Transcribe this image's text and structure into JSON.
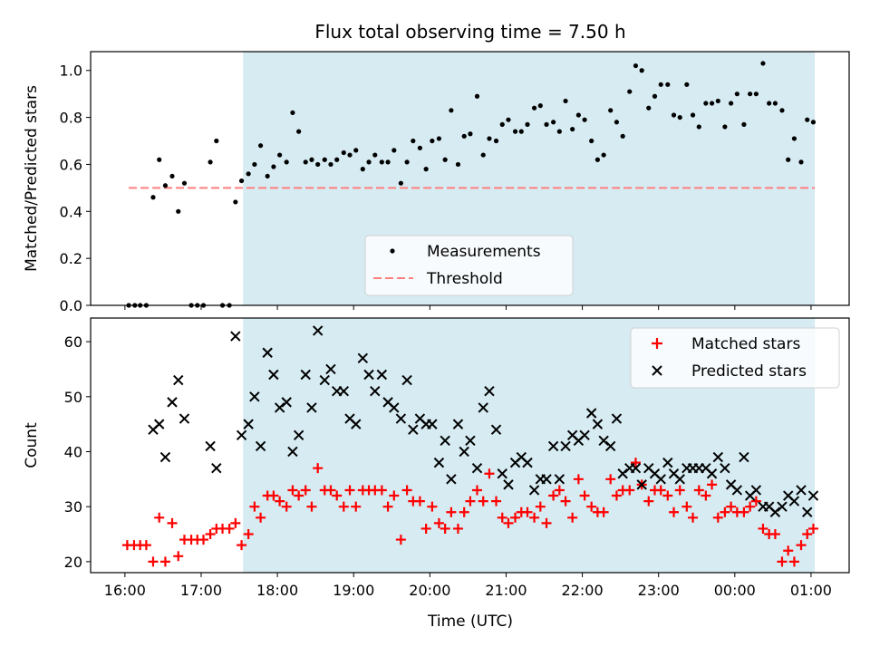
{
  "title": "Flux total observing time = 7.50 h",
  "colors": {
    "shade": "#add8e6",
    "measurement": "#000000",
    "threshold": "#ff7f7f",
    "matched": "#ff0000",
    "predicted": "#000000"
  },
  "chart_data": [
    {
      "type": "scatter",
      "ylabel": "Matched/Predicted stars",
      "xlim": [
        15.55,
        25.5
      ],
      "ylim": [
        0,
        1.08
      ],
      "yticks": [
        "0.0",
        "0.2",
        "0.4",
        "0.6",
        "0.8",
        "1.0"
      ],
      "shaded_span": [
        17.55,
        25.05
      ],
      "legend": [
        "Measurements",
        "Threshold"
      ],
      "threshold": {
        "x": [
          16.05,
          25.05
        ],
        "y": 0.5
      },
      "measurements": {
        "x": [
          16.05,
          16.13,
          16.2,
          16.28,
          16.37,
          16.45,
          16.53,
          16.62,
          16.7,
          16.78,
          16.87,
          16.95,
          17.03,
          17.12,
          17.2,
          17.28,
          17.37,
          17.45,
          17.53,
          17.62,
          17.7,
          17.78,
          17.87,
          17.95,
          18.03,
          18.12,
          18.2,
          18.28,
          18.37,
          18.45,
          18.53,
          18.62,
          18.7,
          18.78,
          18.87,
          18.95,
          19.03,
          19.12,
          19.2,
          19.28,
          19.37,
          19.45,
          19.53,
          19.62,
          19.7,
          19.78,
          19.87,
          19.95,
          20.03,
          20.12,
          20.2,
          20.28,
          20.37,
          20.45,
          20.53,
          20.62,
          20.7,
          20.78,
          20.87,
          20.95,
          21.03,
          21.12,
          21.2,
          21.28,
          21.37,
          21.45,
          21.53,
          21.62,
          21.7,
          21.78,
          21.87,
          21.95,
          22.03,
          22.12,
          22.2,
          22.28,
          22.37,
          22.45,
          22.53,
          22.62,
          22.7,
          22.78,
          22.87,
          22.95,
          23.03,
          23.12,
          23.2,
          23.28,
          23.37,
          23.45,
          23.53,
          23.62,
          23.7,
          23.78,
          23.87,
          23.95,
          24.03,
          24.12,
          24.2,
          24.28,
          24.37,
          24.45,
          24.53,
          24.62,
          24.7,
          24.78,
          24.87,
          24.95,
          25.03
        ],
        "y": [
          0.0,
          0.0,
          0.0,
          0.0,
          0.46,
          0.62,
          0.51,
          0.55,
          0.4,
          0.52,
          0.0,
          0.0,
          0.0,
          0.61,
          0.7,
          0.0,
          0.0,
          0.44,
          0.53,
          0.56,
          0.6,
          0.68,
          0.55,
          0.59,
          0.64,
          0.61,
          0.82,
          0.74,
          0.61,
          0.62,
          0.6,
          0.62,
          0.6,
          0.62,
          0.65,
          0.64,
          0.66,
          0.58,
          0.61,
          0.64,
          0.61,
          0.61,
          0.66,
          0.52,
          0.61,
          0.7,
          0.67,
          0.58,
          0.7,
          0.71,
          0.62,
          0.83,
          0.6,
          0.72,
          0.73,
          0.89,
          0.64,
          0.71,
          0.7,
          0.77,
          0.79,
          0.74,
          0.74,
          0.77,
          0.84,
          0.85,
          0.77,
          0.78,
          0.74,
          0.87,
          0.75,
          0.81,
          0.79,
          0.7,
          0.62,
          0.64,
          0.83,
          0.78,
          0.72,
          0.91,
          1.02,
          1.0,
          0.84,
          0.89,
          0.94,
          0.94,
          0.81,
          0.8,
          0.94,
          0.81,
          0.76,
          0.86,
          0.86,
          0.87,
          0.76,
          0.86,
          0.9,
          0.77,
          0.9,
          0.9,
          1.03,
          0.86,
          0.86,
          0.83,
          0.62,
          0.71,
          0.61,
          0.79,
          0.78
        ]
      }
    },
    {
      "type": "scatter",
      "xlabel": "Time (UTC)",
      "ylabel": "Count",
      "xlim": [
        15.55,
        25.5
      ],
      "ylim": [
        18,
        64.3
      ],
      "yticks": [
        "20",
        "30",
        "40",
        "50",
        "60"
      ],
      "xticks": [
        "16:00",
        "17:00",
        "18:00",
        "19:00",
        "20:00",
        "21:00",
        "22:00",
        "23:00",
        "00:00",
        "01:00"
      ],
      "shaded_span": [
        17.55,
        25.05
      ],
      "legend": [
        "Matched stars",
        "Predicted stars"
      ],
      "matched": {
        "x": [
          16.03,
          16.12,
          16.2,
          16.28,
          16.37,
          16.45,
          16.53,
          16.62,
          16.7,
          16.78,
          16.87,
          16.95,
          17.03,
          17.12,
          17.2,
          17.28,
          17.37,
          17.45,
          17.53,
          17.62,
          17.7,
          17.78,
          17.87,
          17.95,
          18.03,
          18.12,
          18.2,
          18.28,
          18.37,
          18.45,
          18.53,
          18.62,
          18.7,
          18.78,
          18.87,
          18.95,
          19.03,
          19.12,
          19.2,
          19.28,
          19.37,
          19.45,
          19.53,
          19.62,
          19.7,
          19.78,
          19.87,
          19.95,
          20.03,
          20.12,
          20.2,
          20.28,
          20.37,
          20.45,
          20.53,
          20.62,
          20.7,
          20.78,
          20.87,
          20.95,
          21.03,
          21.12,
          21.2,
          21.28,
          21.37,
          21.45,
          21.53,
          21.62,
          21.7,
          21.78,
          21.87,
          21.95,
          22.03,
          22.12,
          22.2,
          22.28,
          22.37,
          22.45,
          22.53,
          22.62,
          22.7,
          22.78,
          22.87,
          22.95,
          23.03,
          23.12,
          23.2,
          23.28,
          23.37,
          23.45,
          23.53,
          23.62,
          23.7,
          23.78,
          23.87,
          23.95,
          24.03,
          24.12,
          24.2,
          24.28,
          24.37,
          24.45,
          24.53,
          24.62,
          24.7,
          24.78,
          24.87,
          24.95,
          25.03
        ],
        "y": [
          23,
          23,
          23,
          23,
          20,
          28,
          20,
          27,
          21,
          24,
          24,
          24,
          24,
          25,
          26,
          26,
          26,
          27,
          23,
          25,
          30,
          28,
          32,
          32,
          31,
          30,
          33,
          32,
          33,
          30,
          37,
          33,
          33,
          32,
          30,
          33,
          30,
          33,
          33,
          33,
          33,
          30,
          32,
          24,
          33,
          31,
          31,
          26,
          30,
          27,
          26,
          29,
          26,
          29,
          31,
          33,
          31,
          36,
          31,
          28,
          27,
          28,
          29,
          29,
          28,
          30,
          27,
          32,
          33,
          31,
          28,
          35,
          32,
          30,
          29,
          29,
          35,
          32,
          33,
          33,
          38,
          34,
          31,
          33,
          33,
          32,
          29,
          33,
          30,
          28,
          33,
          32,
          34,
          28,
          29,
          30,
          29,
          29,
          30,
          31,
          26,
          25,
          25,
          20,
          22,
          20,
          23,
          25,
          26
        ]
      },
      "predicted": {
        "x": [
          16.37,
          16.45,
          16.53,
          16.62,
          16.7,
          16.78,
          17.12,
          17.2,
          17.45,
          17.53,
          17.62,
          17.7,
          17.78,
          17.87,
          17.95,
          18.03,
          18.12,
          18.2,
          18.28,
          18.37,
          18.45,
          18.53,
          18.62,
          18.7,
          18.78,
          18.87,
          18.95,
          19.03,
          19.12,
          19.2,
          19.28,
          19.37,
          19.45,
          19.53,
          19.62,
          19.7,
          19.78,
          19.87,
          19.95,
          20.03,
          20.12,
          20.2,
          20.28,
          20.37,
          20.45,
          20.53,
          20.62,
          20.7,
          20.78,
          20.87,
          20.95,
          21.03,
          21.12,
          21.2,
          21.28,
          21.37,
          21.45,
          21.53,
          21.62,
          21.7,
          21.78,
          21.87,
          21.95,
          22.03,
          22.12,
          22.2,
          22.28,
          22.37,
          22.45,
          22.53,
          22.62,
          22.7,
          22.78,
          22.87,
          22.95,
          23.03,
          23.12,
          23.2,
          23.28,
          23.37,
          23.45,
          23.53,
          23.62,
          23.7,
          23.78,
          23.87,
          23.95,
          24.03,
          24.12,
          24.2,
          24.28,
          24.37,
          24.45,
          24.53,
          24.62,
          24.7,
          24.78,
          24.87,
          24.95,
          25.03
        ],
        "y": [
          44,
          45,
          39,
          49,
          53,
          46,
          41,
          37,
          61,
          43,
          45,
          50,
          41,
          58,
          54,
          48,
          49,
          40,
          43,
          54,
          48,
          62,
          53,
          55,
          51,
          51,
          46,
          45,
          57,
          54,
          51,
          54,
          49,
          48,
          46,
          53,
          44,
          46,
          45,
          45,
          38,
          42,
          35,
          45,
          40,
          42,
          37,
          48,
          51,
          44,
          36,
          34,
          38,
          39,
          38,
          33,
          35,
          35,
          41,
          35,
          41,
          43,
          42,
          43,
          47,
          45,
          42,
          41,
          46,
          36,
          37,
          37,
          34,
          37,
          36,
          35,
          38,
          36,
          35,
          37,
          37,
          37,
          37,
          36,
          39,
          37,
          34,
          33,
          39,
          32,
          33,
          30,
          30,
          29,
          30,
          32,
          31,
          33,
          29,
          32
        ]
      }
    }
  ]
}
